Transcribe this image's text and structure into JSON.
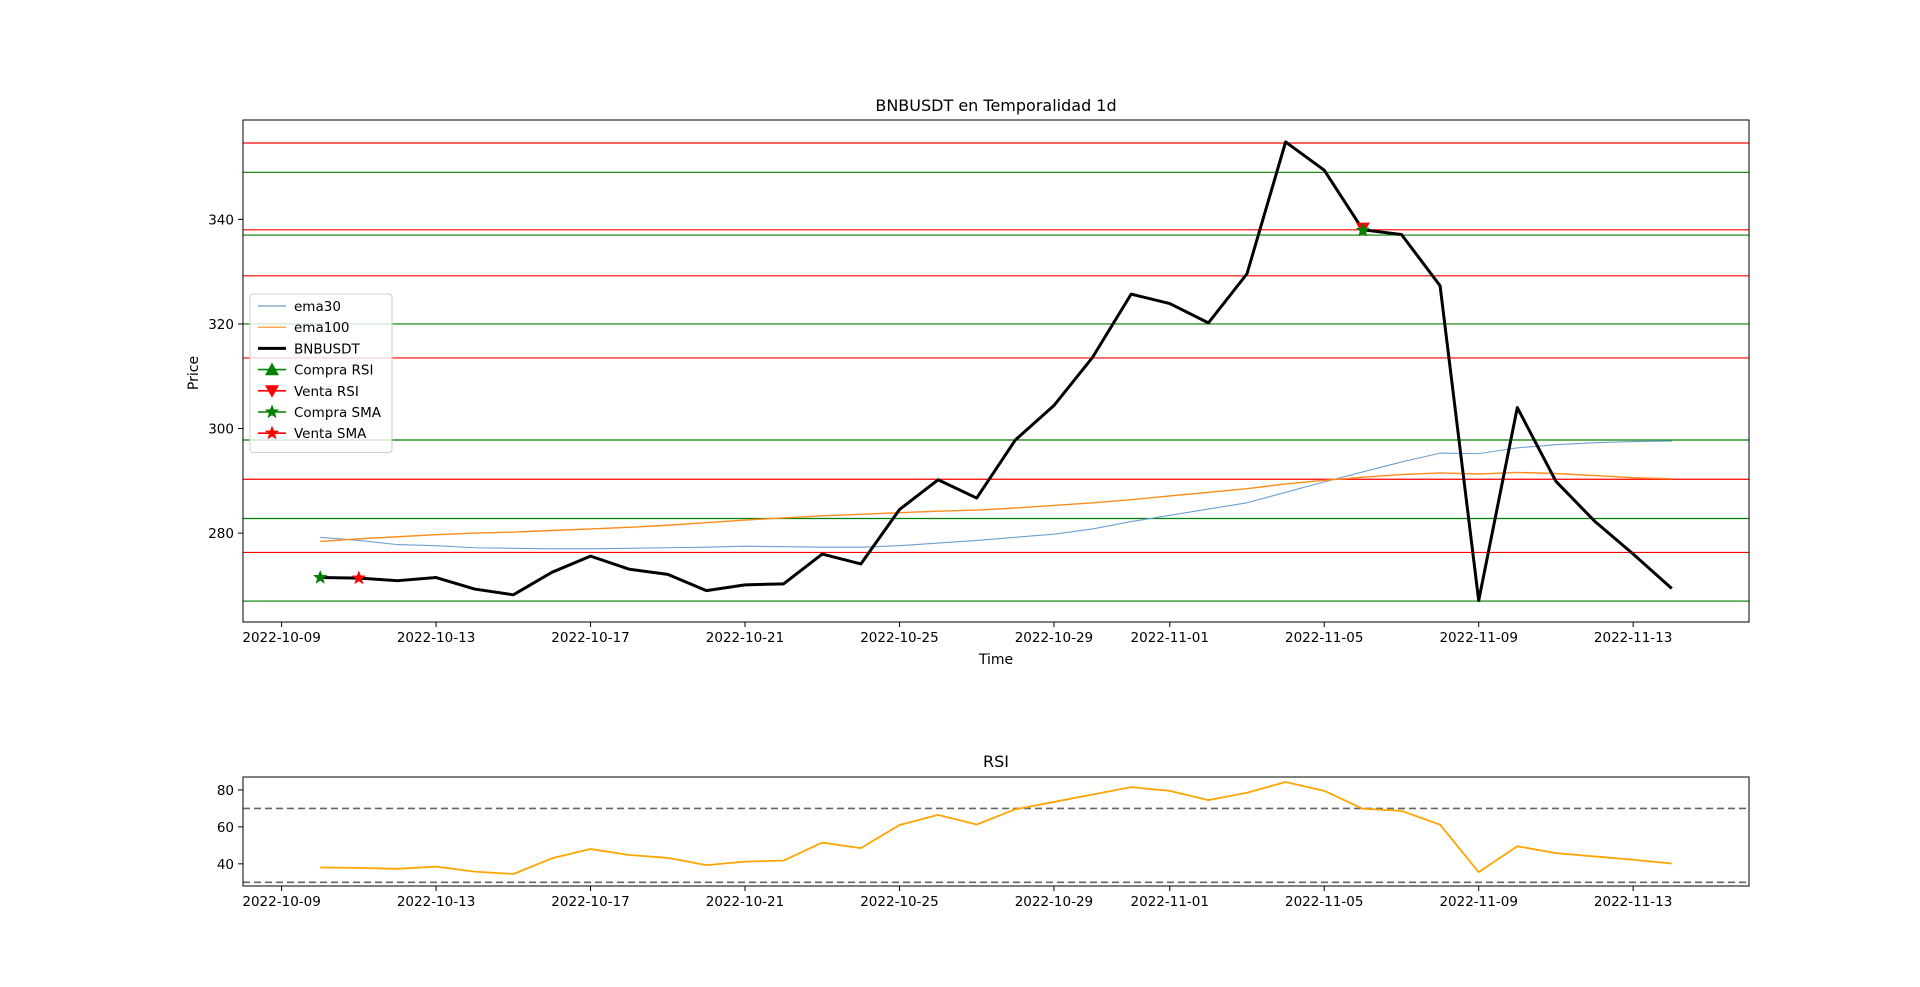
{
  "chart_data": [
    {
      "type": "line",
      "title": "BNBUSDT en Temporalidad 1d",
      "xlabel": "Time",
      "ylabel": "Price",
      "x": [
        "2022-10-10",
        "2022-10-11",
        "2022-10-12",
        "2022-10-13",
        "2022-10-14",
        "2022-10-15",
        "2022-10-16",
        "2022-10-17",
        "2022-10-18",
        "2022-10-19",
        "2022-10-20",
        "2022-10-21",
        "2022-10-22",
        "2022-10-23",
        "2022-10-24",
        "2022-10-25",
        "2022-10-26",
        "2022-10-27",
        "2022-10-28",
        "2022-10-29",
        "2022-10-30",
        "2022-10-31",
        "2022-11-01",
        "2022-11-02",
        "2022-11-03",
        "2022-11-04",
        "2022-11-05",
        "2022-11-06",
        "2022-11-07",
        "2022-11-08",
        "2022-11-09",
        "2022-11-10",
        "2022-11-11",
        "2022-11-12",
        "2022-11-13",
        "2022-11-14"
      ],
      "xticks": [
        "2022-10-09",
        "2022-10-13",
        "2022-10-17",
        "2022-10-21",
        "2022-10-25",
        "2022-10-29",
        "2022-11-01",
        "2022-11-05",
        "2022-11-09",
        "2022-11-13"
      ],
      "xlim": [
        "2022-10-08",
        "2022-11-16"
      ],
      "yticks": [
        280,
        300,
        320,
        340
      ],
      "ylim": [
        263,
        359
      ],
      "grid": false,
      "legend": "center-left",
      "series": [
        {
          "name": "ema30",
          "color": "#6f9fd0",
          "values": [
            279.2,
            278.6,
            277.8,
            277.6,
            277.2,
            277.1,
            277.0,
            277.0,
            277.1,
            277.2,
            277.3,
            277.5,
            277.4,
            277.3,
            277.3,
            277.6,
            278.1,
            278.6,
            279.2,
            279.8,
            280.8,
            282.2,
            283.4,
            284.6,
            285.8,
            287.8,
            289.8,
            291.7,
            293.6,
            295.3,
            295.2,
            296.3,
            296.9,
            297.3,
            297.5,
            297.6
          ]
        },
        {
          "name": "ema100",
          "color": "#ff8c1a",
          "values": [
            278.4,
            278.9,
            279.3,
            279.7,
            280.0,
            280.2,
            280.5,
            280.8,
            281.1,
            281.5,
            282.0,
            282.5,
            282.9,
            283.3,
            283.6,
            283.9,
            284.2,
            284.4,
            284.8,
            285.3,
            285.8,
            286.4,
            287.1,
            287.8,
            288.5,
            289.4,
            290.1,
            290.7,
            291.2,
            291.5,
            291.3,
            291.6,
            291.4,
            291.0,
            290.6,
            290.4
          ]
        },
        {
          "name": "BNBUSDT",
          "color": "#000000",
          "values": [
            271.5,
            271.4,
            270.9,
            271.5,
            269.3,
            268.2,
            272.5,
            275.6,
            273.1,
            272.1,
            269.0,
            270.1,
            270.3,
            276.0,
            274.1,
            284.5,
            290.2,
            286.7,
            297.8,
            304.4,
            313.6,
            325.7,
            323.9,
            320.2,
            329.6,
            354.8,
            349.4,
            338.0,
            337.1,
            327.3,
            267.1,
            304.0,
            289.9,
            282.3,
            276.0,
            269.4
          ]
        }
      ],
      "markers": [
        {
          "name": "Compra RSI",
          "color": "#008000",
          "shape": "triangle-up",
          "points": []
        },
        {
          "name": "Venta RSI",
          "color": "#ff0000",
          "shape": "triangle-down",
          "points": [
            {
              "x": "2022-11-06",
              "y": 338.3
            }
          ]
        },
        {
          "name": "Compra SMA",
          "color": "#008000",
          "shape": "star",
          "points": [
            {
              "x": "2022-10-10",
              "y": 271.5
            },
            {
              "x": "2022-11-06",
              "y": 337.9
            }
          ]
        },
        {
          "name": "Venta SMA",
          "color": "#ff0000",
          "shape": "star",
          "points": [
            {
              "x": "2022-10-11",
              "y": 271.4
            }
          ]
        }
      ],
      "hlines": [
        {
          "y": 354.6,
          "color": "#ff0000"
        },
        {
          "y": 349.0,
          "color": "#008000"
        },
        {
          "y": 338.0,
          "color": "#ff0000"
        },
        {
          "y": 337.0,
          "color": "#008000"
        },
        {
          "y": 329.2,
          "color": "#ff0000"
        },
        {
          "y": 320.0,
          "color": "#008000"
        },
        {
          "y": 313.5,
          "color": "#ff0000"
        },
        {
          "y": 297.8,
          "color": "#008000"
        },
        {
          "y": 290.3,
          "color": "#ff0000"
        },
        {
          "y": 282.8,
          "color": "#008000"
        },
        {
          "y": 276.3,
          "color": "#ff0000"
        },
        {
          "y": 267.0,
          "color": "#008000"
        }
      ]
    },
    {
      "type": "line",
      "title": "RSI",
      "xticks": [
        "2022-10-09",
        "2022-10-13",
        "2022-10-17",
        "2022-10-21",
        "2022-10-25",
        "2022-10-29",
        "2022-11-01",
        "2022-11-05",
        "2022-11-09",
        "2022-11-13"
      ],
      "xlim": [
        "2022-10-08",
        "2022-11-16"
      ],
      "yticks": [
        40,
        60,
        80
      ],
      "ylim": [
        28,
        87
      ],
      "grid": false,
      "series": [
        {
          "name": "RSI",
          "color": "#ffa500",
          "values": [
            38.0,
            37.8,
            37.3,
            38.5,
            35.8,
            34.5,
            43.0,
            48.0,
            44.8,
            43.2,
            39.3,
            41.2,
            41.8,
            51.5,
            48.5,
            61.0,
            66.5,
            61.3,
            69.5,
            73.5,
            77.5,
            81.5,
            79.5,
            74.5,
            78.5,
            84.3,
            79.5,
            69.8,
            68.7,
            61.2,
            35.5,
            49.5,
            45.8,
            44.0,
            42.2,
            40.2
          ]
        }
      ],
      "hlines": [
        {
          "y": 70,
          "color": "#666666",
          "style": "dashed"
        },
        {
          "y": 30,
          "color": "#666666",
          "style": "dashed"
        }
      ]
    }
  ]
}
